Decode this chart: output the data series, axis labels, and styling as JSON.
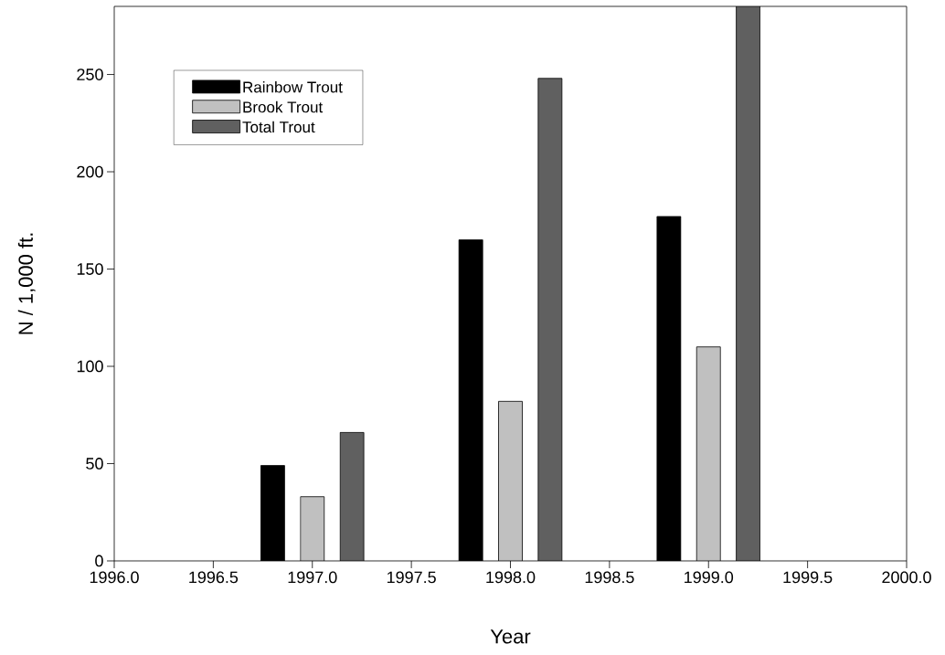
{
  "chart_data": {
    "type": "bar",
    "xlabel": "Year",
    "ylabel": "N / 1,000 ft.",
    "xlim": [
      1996,
      2000
    ],
    "ylim": [
      0,
      285
    ],
    "xticks": [
      {
        "value": 1996,
        "label": "1996.0"
      },
      {
        "value": 1996.5,
        "label": "1996.5"
      },
      {
        "value": 1997,
        "label": "1997.0"
      },
      {
        "value": 1997.5,
        "label": "1997.5"
      },
      {
        "value": 1998,
        "label": "1998.0"
      },
      {
        "value": 1998.5,
        "label": "1998.5"
      },
      {
        "value": 1999,
        "label": "1999.0"
      },
      {
        "value": 1999.5,
        "label": "1999.5"
      },
      {
        "value": 2000,
        "label": "2000.0"
      }
    ],
    "yticks": [
      0,
      50,
      100,
      150,
      200,
      250
    ],
    "legend": "top left",
    "series": [
      {
        "name": "Rainbow Trout",
        "color": "#000000",
        "x": [
          1996.8,
          1997.8,
          1998.8
        ],
        "values": [
          49,
          165,
          177
        ]
      },
      {
        "name": "Brook Trout",
        "color": "#c0c0c0",
        "x": [
          1997.0,
          1998.0,
          1999.0
        ],
        "values": [
          33,
          82,
          110
        ]
      },
      {
        "name": "Total Trout",
        "color": "#606060",
        "x": [
          1997.2,
          1998.2,
          1999.2
        ],
        "values": [
          66,
          248,
          285
        ]
      }
    ]
  }
}
